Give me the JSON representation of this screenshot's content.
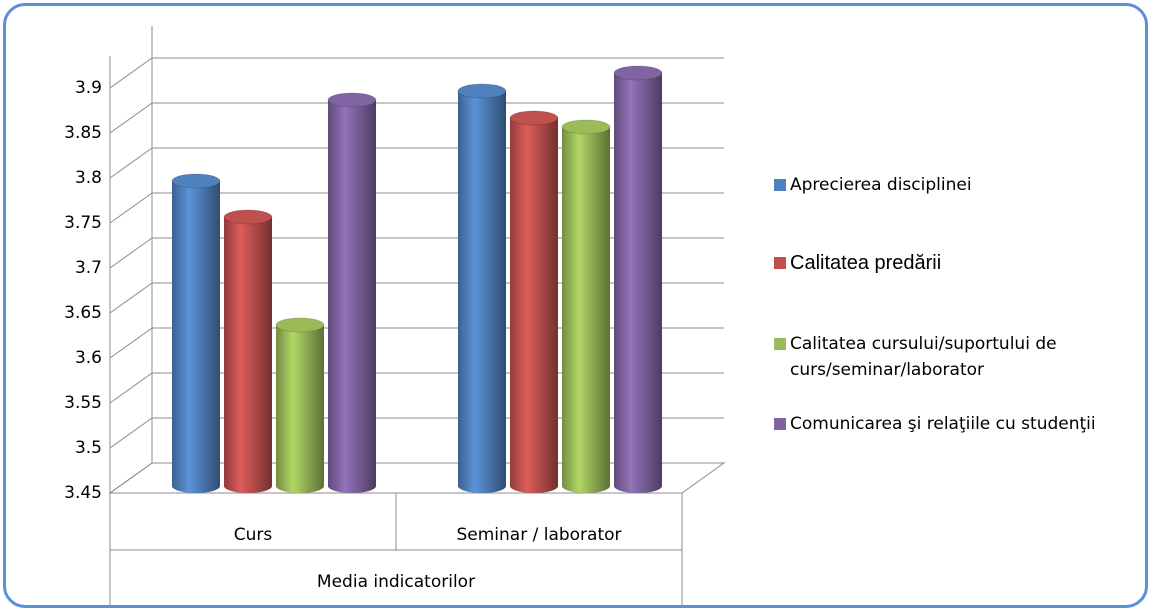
{
  "chart_data": {
    "type": "bar3d",
    "categories": [
      "Curs",
      "Seminar / laborator"
    ],
    "category_group": "Media indicatorilor",
    "series": [
      {
        "name": "Aprecierea disciplinei",
        "color": "#4f81bd",
        "values": [
          3.78,
          3.88
        ]
      },
      {
        "name": "Calitatea predării",
        "color": "#c0504d",
        "values": [
          3.74,
          3.85
        ]
      },
      {
        "name": "Calitatea cursului/suportului de curs/seminar/laborator",
        "color": "#9bbb59",
        "values": [
          3.62,
          3.84
        ]
      },
      {
        "name": "Comunicarea şi relaţiile cu studenţii",
        "color": "#8064a2",
        "values": [
          3.87,
          3.9
        ]
      }
    ],
    "ylim": [
      3.45,
      3.9
    ],
    "yticks": [
      3.45,
      3.5,
      3.55,
      3.6,
      3.65,
      3.7,
      3.75,
      3.8,
      3.85,
      3.9
    ],
    "grid": true,
    "legend": "right"
  }
}
